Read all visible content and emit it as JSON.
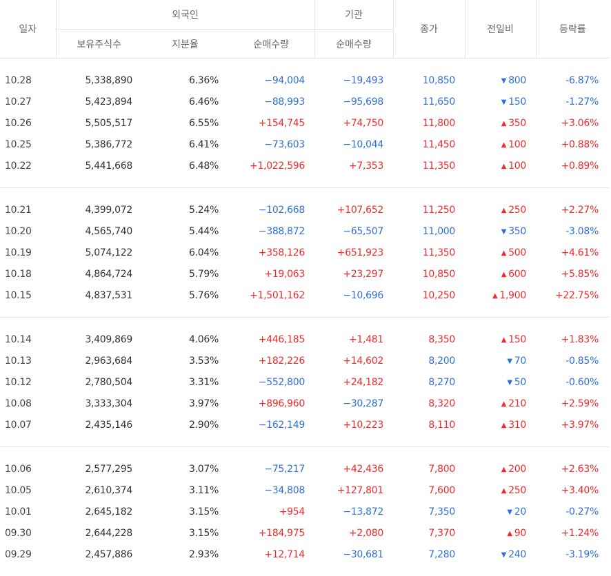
{
  "header": {
    "date": "일자",
    "foreign": "외국인",
    "institution": "기관",
    "close": "종가",
    "change": "전일비",
    "rate": "등락률",
    "holdings": "보유주식수",
    "share": "지분율",
    "foreign_net": "순매수량",
    "inst_net": "순매수량"
  },
  "colors": {
    "up": "#f02a2a",
    "down": "#2f6fd8"
  },
  "groups": [
    {
      "rows": [
        {
          "date": "10.28",
          "holdings": "5,338,890",
          "share": "6.36%",
          "foreign_net": "−94,004",
          "inst_net": "−19,493",
          "close": "10,850",
          "tri": "▼",
          "change": "800",
          "rate": "-6.87%",
          "dir": "down",
          "fdir": "down",
          "idir": "down"
        },
        {
          "date": "10.27",
          "holdings": "5,423,894",
          "share": "6.46%",
          "foreign_net": "−88,993",
          "inst_net": "−95,698",
          "close": "11,650",
          "tri": "▼",
          "change": "150",
          "rate": "-1.27%",
          "dir": "down",
          "fdir": "down",
          "idir": "down"
        },
        {
          "date": "10.26",
          "holdings": "5,505,517",
          "share": "6.55%",
          "foreign_net": "+154,745",
          "inst_net": "+74,750",
          "close": "11,800",
          "tri": "▲",
          "change": "350",
          "rate": "+3.06%",
          "dir": "up",
          "fdir": "up",
          "idir": "up"
        },
        {
          "date": "10.25",
          "holdings": "5,386,772",
          "share": "6.41%",
          "foreign_net": "−73,603",
          "inst_net": "−10,044",
          "close": "11,450",
          "tri": "▲",
          "change": "100",
          "rate": "+0.88%",
          "dir": "up",
          "fdir": "down",
          "idir": "down"
        },
        {
          "date": "10.22",
          "holdings": "5,441,668",
          "share": "6.48%",
          "foreign_net": "+1,022,596",
          "inst_net": "+7,353",
          "close": "11,350",
          "tri": "▲",
          "change": "100",
          "rate": "+0.89%",
          "dir": "up",
          "fdir": "up",
          "idir": "up"
        }
      ]
    },
    {
      "rows": [
        {
          "date": "10.21",
          "holdings": "4,399,072",
          "share": "5.24%",
          "foreign_net": "−102,668",
          "inst_net": "+107,652",
          "close": "11,250",
          "tri": "▲",
          "change": "250",
          "rate": "+2.27%",
          "dir": "up",
          "fdir": "down",
          "idir": "up"
        },
        {
          "date": "10.20",
          "holdings": "4,565,740",
          "share": "5.44%",
          "foreign_net": "−388,872",
          "inst_net": "−65,507",
          "close": "11,000",
          "tri": "▼",
          "change": "350",
          "rate": "-3.08%",
          "dir": "down",
          "fdir": "down",
          "idir": "down"
        },
        {
          "date": "10.19",
          "holdings": "5,074,122",
          "share": "6.04%",
          "foreign_net": "+358,126",
          "inst_net": "+651,923",
          "close": "11,350",
          "tri": "▲",
          "change": "500",
          "rate": "+4.61%",
          "dir": "up",
          "fdir": "up",
          "idir": "up"
        },
        {
          "date": "10.18",
          "holdings": "4,864,724",
          "share": "5.79%",
          "foreign_net": "+19,063",
          "inst_net": "+23,297",
          "close": "10,850",
          "tri": "▲",
          "change": "600",
          "rate": "+5.85%",
          "dir": "up",
          "fdir": "up",
          "idir": "up"
        },
        {
          "date": "10.15",
          "holdings": "4,837,531",
          "share": "5.76%",
          "foreign_net": "+1,501,162",
          "inst_net": "−10,696",
          "close": "10,250",
          "tri": "▲",
          "change": "1,900",
          "rate": "+22.75%",
          "dir": "up",
          "fdir": "up",
          "idir": "down"
        }
      ]
    },
    {
      "rows": [
        {
          "date": "10.14",
          "holdings": "3,409,869",
          "share": "4.06%",
          "foreign_net": "+446,185",
          "inst_net": "+1,481",
          "close": "8,350",
          "tri": "▲",
          "change": "150",
          "rate": "+1.83%",
          "dir": "up",
          "fdir": "up",
          "idir": "up"
        },
        {
          "date": "10.13",
          "holdings": "2,963,684",
          "share": "3.53%",
          "foreign_net": "+182,226",
          "inst_net": "+14,602",
          "close": "8,200",
          "tri": "▼",
          "change": "70",
          "rate": "-0.85%",
          "dir": "down",
          "fdir": "up",
          "idir": "up"
        },
        {
          "date": "10.12",
          "holdings": "2,780,504",
          "share": "3.31%",
          "foreign_net": "−552,800",
          "inst_net": "+24,182",
          "close": "8,270",
          "tri": "▼",
          "change": "50",
          "rate": "-0.60%",
          "dir": "down",
          "fdir": "down",
          "idir": "up"
        },
        {
          "date": "10.08",
          "holdings": "3,333,304",
          "share": "3.97%",
          "foreign_net": "+896,960",
          "inst_net": "−30,287",
          "close": "8,320",
          "tri": "▲",
          "change": "210",
          "rate": "+2.59%",
          "dir": "up",
          "fdir": "up",
          "idir": "down"
        },
        {
          "date": "10.07",
          "holdings": "2,435,146",
          "share": "2.90%",
          "foreign_net": "−162,149",
          "inst_net": "+10,223",
          "close": "8,110",
          "tri": "▲",
          "change": "310",
          "rate": "+3.97%",
          "dir": "up",
          "fdir": "down",
          "idir": "up"
        }
      ]
    },
    {
      "rows": [
        {
          "date": "10.06",
          "holdings": "2,577,295",
          "share": "3.07%",
          "foreign_net": "−75,217",
          "inst_net": "+42,436",
          "close": "7,800",
          "tri": "▲",
          "change": "200",
          "rate": "+2.63%",
          "dir": "up",
          "fdir": "down",
          "idir": "up"
        },
        {
          "date": "10.05",
          "holdings": "2,610,374",
          "share": "3.11%",
          "foreign_net": "−34,808",
          "inst_net": "+127,801",
          "close": "7,600",
          "tri": "▲",
          "change": "250",
          "rate": "+3.40%",
          "dir": "up",
          "fdir": "down",
          "idir": "up"
        },
        {
          "date": "10.01",
          "holdings": "2,645,182",
          "share": "3.15%",
          "foreign_net": "+954",
          "inst_net": "−13,872",
          "close": "7,350",
          "tri": "▼",
          "change": "20",
          "rate": "-0.27%",
          "dir": "down",
          "fdir": "up",
          "idir": "down"
        },
        {
          "date": "09.30",
          "holdings": "2,644,228",
          "share": "3.15%",
          "foreign_net": "+184,975",
          "inst_net": "+2,080",
          "close": "7,370",
          "tri": "▲",
          "change": "90",
          "rate": "+1.24%",
          "dir": "up",
          "fdir": "up",
          "idir": "up"
        },
        {
          "date": "09.29",
          "holdings": "2,457,886",
          "share": "2.93%",
          "foreign_net": "+12,714",
          "inst_net": "−30,681",
          "close": "7,280",
          "tri": "▼",
          "change": "240",
          "rate": "-3.19%",
          "dir": "down",
          "fdir": "up",
          "idir": "down"
        }
      ]
    }
  ]
}
